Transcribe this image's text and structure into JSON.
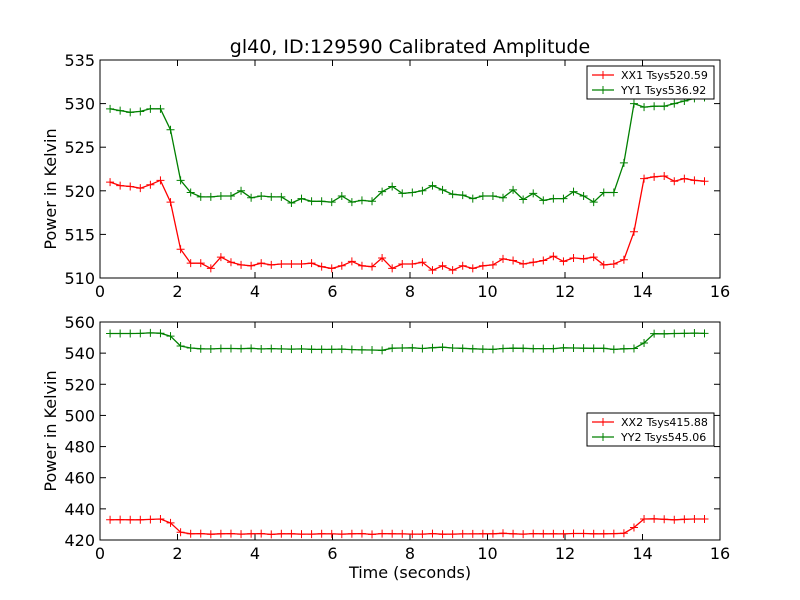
{
  "chart_data": [
    {
      "type": "line",
      "title": "gl40, ID:129590 Calibrated Amplitude",
      "xlabel": "",
      "ylabel": "Power in Kelvin",
      "xlim": [
        0,
        16
      ],
      "ylim": [
        510,
        535
      ],
      "xticks": [
        "0",
        "2",
        "4",
        "6",
        "8",
        "10",
        "12",
        "14",
        "16"
      ],
      "yticks": [
        "510",
        "515",
        "520",
        "525",
        "530",
        "535"
      ],
      "grid": false,
      "legend_position": "top-right",
      "x": [
        0.26,
        0.52,
        0.78,
        1.04,
        1.3,
        1.56,
        1.82,
        2.08,
        2.34,
        2.6,
        2.86,
        3.12,
        3.38,
        3.64,
        3.9,
        4.16,
        4.42,
        4.68,
        4.94,
        5.2,
        5.46,
        5.72,
        5.98,
        6.24,
        6.5,
        6.76,
        7.02,
        7.28,
        7.54,
        7.8,
        8.06,
        8.32,
        8.58,
        8.84,
        9.1,
        9.36,
        9.62,
        9.88,
        10.14,
        10.4,
        10.66,
        10.92,
        11.18,
        11.44,
        11.7,
        11.96,
        12.22,
        12.48,
        12.74,
        13.0,
        13.26,
        13.52,
        13.78,
        14.04,
        14.3,
        14.56,
        14.82,
        15.08,
        15.34,
        15.6
      ],
      "series": [
        {
          "name": "XX1 Tsys520.59",
          "color": "#ff0000",
          "values": [
            521.0,
            520.6,
            520.5,
            520.3,
            520.7,
            521.2,
            518.7,
            513.3,
            511.7,
            511.7,
            511.1,
            512.4,
            511.8,
            511.5,
            511.4,
            511.7,
            511.5,
            511.6,
            511.6,
            511.6,
            511.7,
            511.3,
            511.1,
            511.4,
            511.9,
            511.4,
            511.3,
            512.3,
            511.1,
            511.6,
            511.6,
            511.8,
            510.9,
            511.4,
            510.9,
            511.4,
            511.1,
            511.4,
            511.5,
            512.2,
            512.0,
            511.6,
            511.8,
            512.0,
            512.5,
            511.9,
            512.3,
            512.2,
            512.4,
            511.5,
            511.6,
            512.1,
            515.3,
            521.4,
            521.6,
            521.7,
            521.1,
            521.4,
            521.2,
            521.1
          ]
        },
        {
          "name": "YY1 Tsys536.92",
          "color": "#008000",
          "values": [
            529.4,
            529.2,
            529.0,
            529.1,
            529.4,
            529.4,
            527.0,
            521.2,
            519.8,
            519.3,
            519.3,
            519.4,
            519.4,
            520.0,
            519.2,
            519.4,
            519.3,
            519.3,
            518.6,
            519.1,
            518.8,
            518.8,
            518.7,
            519.4,
            518.7,
            518.9,
            518.8,
            519.9,
            520.5,
            519.7,
            519.8,
            520.0,
            520.6,
            520.1,
            519.6,
            519.5,
            519.1,
            519.4,
            519.4,
            519.2,
            520.1,
            519.0,
            519.7,
            518.9,
            519.1,
            519.1,
            519.9,
            519.4,
            518.7,
            519.8,
            519.8,
            523.2,
            530.0,
            529.6,
            529.7,
            529.7,
            530.0,
            530.3,
            530.6,
            530.7
          ]
        }
      ]
    },
    {
      "type": "line",
      "title": "",
      "xlabel": "Time (seconds)",
      "ylabel": "Power in Kelvin",
      "xlim": [
        0,
        16
      ],
      "ylim": [
        420,
        560
      ],
      "xticks": [
        "0",
        "2",
        "4",
        "6",
        "8",
        "10",
        "12",
        "14",
        "16"
      ],
      "yticks": [
        "420",
        "440",
        "460",
        "480",
        "500",
        "520",
        "540",
        "560"
      ],
      "grid": false,
      "legend_position": "center-right",
      "x": [
        0.26,
        0.52,
        0.78,
        1.04,
        1.3,
        1.56,
        1.82,
        2.08,
        2.34,
        2.6,
        2.86,
        3.12,
        3.38,
        3.64,
        3.9,
        4.16,
        4.42,
        4.68,
        4.94,
        5.2,
        5.46,
        5.72,
        5.98,
        6.24,
        6.5,
        6.76,
        7.02,
        7.28,
        7.54,
        7.8,
        8.06,
        8.32,
        8.58,
        8.84,
        9.1,
        9.36,
        9.62,
        9.88,
        10.14,
        10.4,
        10.66,
        10.92,
        11.18,
        11.44,
        11.7,
        11.96,
        12.22,
        12.48,
        12.74,
        13.0,
        13.26,
        13.52,
        13.78,
        14.04,
        14.3,
        14.56,
        14.82,
        15.08,
        15.34,
        15.6
      ],
      "series": [
        {
          "name": "XX2 Tsys415.88",
          "color": "#ff0000",
          "values": [
            433.0,
            433.1,
            433.0,
            433.0,
            433.2,
            433.5,
            431.0,
            425.0,
            424.0,
            424.1,
            423.7,
            424.0,
            424.1,
            423.8,
            424.0,
            424.1,
            423.6,
            424.0,
            424.0,
            423.8,
            423.8,
            424.0,
            423.9,
            423.8,
            424.0,
            424.1,
            423.6,
            424.1,
            424.0,
            423.9,
            423.8,
            423.8,
            424.1,
            423.7,
            423.8,
            423.9,
            423.9,
            424.0,
            424.0,
            424.3,
            424.0,
            423.8,
            424.1,
            424.0,
            424.0,
            423.9,
            424.2,
            424.2,
            424.0,
            424.0,
            424.1,
            424.3,
            428.0,
            433.5,
            433.6,
            433.3,
            433.0,
            433.3,
            433.5,
            433.5
          ]
        },
        {
          "name": "YY2 Tsys545.06",
          "color": "#008000",
          "values": [
            552.6,
            552.6,
            552.6,
            552.7,
            553.0,
            552.8,
            550.9,
            544.6,
            543.3,
            542.8,
            542.7,
            543.0,
            543.0,
            542.9,
            543.1,
            542.7,
            542.9,
            542.7,
            542.6,
            542.7,
            542.5,
            542.4,
            542.4,
            542.6,
            542.3,
            542.1,
            542.0,
            541.8,
            543.2,
            543.3,
            543.4,
            543.0,
            543.5,
            543.8,
            543.3,
            543.1,
            542.8,
            542.6,
            542.4,
            543.0,
            543.2,
            543.1,
            542.9,
            542.9,
            542.9,
            543.4,
            543.3,
            543.2,
            543.1,
            543.1,
            542.4,
            542.8,
            543.0,
            546.5,
            552.5,
            552.4,
            552.6,
            552.7,
            552.9,
            552.7
          ]
        }
      ]
    }
  ]
}
